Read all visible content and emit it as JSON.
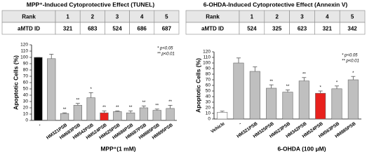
{
  "chart_data": [
    {
      "type": "bar",
      "title": "MPP⁺-Induced Cytoprotective Effect (TUNEL)",
      "table": {
        "rows": [
          [
            "Rank",
            1,
            2,
            3,
            4,
            5
          ],
          [
            "aMTD ID",
            321,
            683,
            524,
            686,
            687
          ]
        ],
        "highlight_column": 3,
        "highlight_color": "#e8211d"
      },
      "y_label": "Apoptotic Cells (%)",
      "x_label": "MPP⁺(1 mM)",
      "notes": [
        "* p<0.05",
        "** p<0.01"
      ],
      "categories": [
        "-",
        null,
        "HM321PSB",
        "HM683PSB",
        "HM542PSB",
        "HM524PSB",
        "HM625PSB",
        "HM686PSB",
        "HM687PSB",
        "HM885PSB",
        "HM895PSB"
      ],
      "values": [
        100,
        98,
        11,
        24,
        36,
        12,
        14,
        12,
        20,
        16,
        19
      ],
      "errors": [
        0,
        7,
        1,
        3,
        8,
        3,
        1,
        3,
        3,
        2,
        5
      ],
      "colors": [
        "#000000",
        "#bfbfbf",
        "#bfbfbf",
        "#bfbfbf",
        "#bfbfbf",
        "#e8211d",
        "#bfbfbf",
        "#bfbfbf",
        "#bfbfbf",
        "#bfbfbf",
        "#bfbfbf"
      ],
      "significance": [
        null,
        null,
        "**",
        "**",
        "*",
        "**",
        "**",
        "**",
        "**",
        "**",
        "**"
      ],
      "highlight_label": 5,
      "ylim": [
        0,
        120
      ],
      "yticks": [
        0,
        10,
        20,
        30,
        40,
        50,
        60,
        70,
        80,
        90,
        100,
        110,
        120
      ]
    },
    {
      "type": "bar",
      "title": "6-OHDA-Induced Cytoprotective Effect (Annexin V)",
      "table": {
        "rows": [
          [
            "Rank",
            1,
            2,
            3,
            4,
            5
          ],
          [
            "aMTD ID",
            524,
            325,
            623,
            321,
            342
          ]
        ],
        "highlight_column": 1,
        "highlight_color": "#e8211d"
      },
      "y_label": "Apoptotic Cells (%)",
      "x_label": "6-OHDA (100 μM)",
      "notes": [
        "* p<0.05",
        "** p<0.01"
      ],
      "categories": [
        "Vehicle",
        "-",
        "HM321PSB",
        "HM325PSB",
        "HM623PSB",
        "HM342PSB",
        "HM524PSB",
        "HM563PSB",
        "HM885PSB"
      ],
      "values": [
        12,
        100,
        85,
        55,
        48,
        68,
        46,
        54,
        70
      ],
      "errors": [
        2,
        9,
        8,
        6,
        4,
        6,
        4,
        5,
        6
      ],
      "colors": [
        "#ffffff",
        "#bfbfbf",
        "#bfbfbf",
        "#bfbfbf",
        "#bfbfbf",
        "#bfbfbf",
        "#e8211d",
        "#bfbfbf",
        "#bfbfbf"
      ],
      "significance": [
        null,
        null,
        null,
        "**",
        "**",
        "**",
        "*",
        "*",
        "*"
      ],
      "highlight_label": 6,
      "ylim": [
        0,
        120
      ],
      "yticks": [
        0,
        10,
        20,
        30,
        40,
        50,
        60,
        70,
        80,
        90,
        100,
        110,
        120
      ]
    }
  ]
}
